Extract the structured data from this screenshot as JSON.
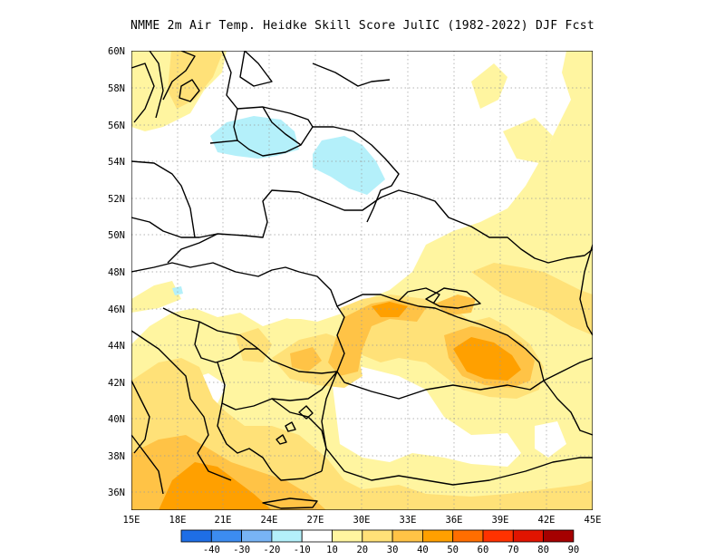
{
  "title": "NMME  2m Air Temp. Heidke Skill Score JulIC (1982-2022) DJF Fcst",
  "map": {
    "lat_labels": [
      "60N",
      "58N",
      "56N",
      "54N",
      "52N",
      "50N",
      "48N",
      "46N",
      "44N",
      "42N",
      "40N",
      "38N",
      "36N"
    ],
    "lon_labels": [
      "15E",
      "18E",
      "21E",
      "24E",
      "27E",
      "30E",
      "33E",
      "36E",
      "39E",
      "42E",
      "45E"
    ],
    "extent": {
      "lon": [
        15,
        45
      ],
      "lat": [
        35,
        60
      ]
    }
  },
  "colorbar": {
    "labels": [
      "-40",
      "-30",
      "-20",
      "-10",
      "10",
      "20",
      "30",
      "40",
      "50",
      "60",
      "70",
      "80",
      "90"
    ],
    "colors": [
      "#1e6ee6",
      "#3c8cf0",
      "#78b4f5",
      "#b4f0fa",
      "#ffffff",
      "#fff5a0",
      "#ffe178",
      "#ffc346",
      "#ffa000",
      "#ff6e00",
      "#ff3200",
      "#e11400",
      "#a50000"
    ]
  },
  "palette": {
    "light_yellow": "#fff5a0",
    "yellow": "#ffe178",
    "orange_light": "#ffc346",
    "orange": "#ffa000",
    "light_blue": "#b4f0fa"
  }
}
